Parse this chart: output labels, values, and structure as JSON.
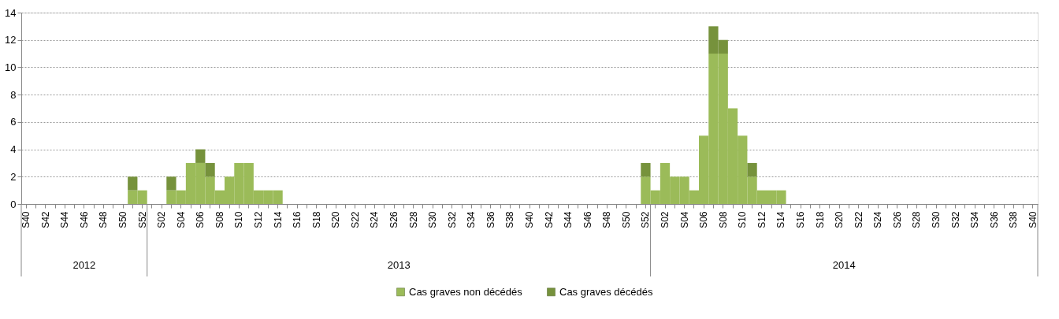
{
  "chart_data": {
    "type": "bar",
    "stacked": true,
    "categories": [
      "S40",
      null,
      "S42",
      null,
      "S44",
      null,
      "S46",
      null,
      "S48",
      null,
      "S50",
      null,
      "S52",
      null,
      "S02",
      null,
      "S04",
      null,
      "S06",
      null,
      "S08",
      null,
      "S10",
      null,
      "S12",
      null,
      "S14",
      null,
      "S16",
      null,
      "S18",
      null,
      "S20",
      null,
      "S22",
      null,
      "S24",
      null,
      "S26",
      null,
      "S28",
      null,
      "S30",
      null,
      "S32",
      null,
      "S34",
      null,
      "S36",
      null,
      "S38",
      null,
      "S40",
      null,
      "S42",
      null,
      "S44",
      null,
      "S46",
      null,
      "S48",
      null,
      "S50",
      null,
      "S52",
      null,
      "S02",
      null,
      "S04",
      null,
      "S06",
      null,
      "S08",
      null,
      "S10",
      null,
      "S12",
      null,
      "S14",
      null,
      "S16",
      null,
      "S18",
      null,
      "S20",
      null,
      "S22",
      null,
      "S24",
      null,
      "S26",
      null,
      "S28",
      null,
      "S30",
      null,
      "S32",
      null,
      "S34",
      null,
      "S36",
      null,
      "S38",
      null,
      "S40"
    ],
    "series": [
      {
        "name": "Cas graves non décédés",
        "color": "#9bbb59",
        "values": [
          0,
          0,
          0,
          0,
          0,
          0,
          0,
          0,
          0,
          0,
          0,
          1,
          1,
          0,
          0,
          1,
          1,
          3,
          3,
          2,
          1,
          2,
          3,
          3,
          1,
          1,
          1,
          0,
          0,
          0,
          0,
          0,
          0,
          0,
          0,
          0,
          0,
          0,
          0,
          0,
          0,
          0,
          0,
          0,
          0,
          0,
          0,
          0,
          0,
          0,
          0,
          0,
          0,
          0,
          0,
          0,
          0,
          0,
          0,
          0,
          0,
          0,
          0,
          0,
          2,
          1,
          3,
          2,
          2,
          1,
          5,
          11,
          11,
          7,
          5,
          2,
          1,
          1,
          1,
          0,
          0,
          0,
          0,
          0,
          0,
          0,
          0,
          0,
          0,
          0,
          0,
          0,
          0,
          0,
          0,
          0,
          0,
          0,
          0,
          0,
          0,
          0,
          0,
          0,
          0
        ]
      },
      {
        "name": "Cas graves décédés",
        "color": "#76923c",
        "values": [
          0,
          0,
          0,
          0,
          0,
          0,
          0,
          0,
          0,
          0,
          0,
          1,
          0,
          0,
          0,
          1,
          0,
          0,
          1,
          1,
          0,
          0,
          0,
          0,
          0,
          0,
          0,
          0,
          0,
          0,
          0,
          0,
          0,
          0,
          0,
          0,
          0,
          0,
          0,
          0,
          0,
          0,
          0,
          0,
          0,
          0,
          0,
          0,
          0,
          0,
          0,
          0,
          0,
          0,
          0,
          0,
          0,
          0,
          0,
          0,
          0,
          0,
          0,
          0,
          1,
          0,
          0,
          0,
          0,
          0,
          0,
          2,
          1,
          0,
          0,
          1,
          0,
          0,
          0,
          0,
          0,
          0,
          0,
          0,
          0,
          0,
          0,
          0,
          0,
          0,
          0,
          0,
          0,
          0,
          0,
          0,
          0,
          0,
          0,
          0,
          0,
          0,
          0,
          0,
          0
        ]
      }
    ],
    "ylim": [
      0,
      14
    ],
    "yticks": [
      0,
      2,
      4,
      6,
      8,
      10,
      12,
      14
    ],
    "grid": "y",
    "legend": "bottom",
    "annotations": [
      "2012",
      "2013",
      "2014"
    ]
  }
}
